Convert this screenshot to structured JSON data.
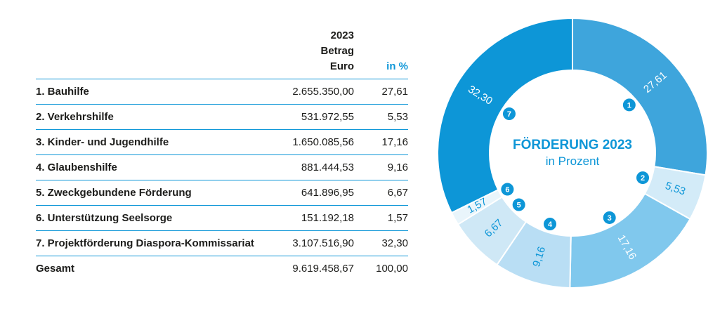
{
  "table": {
    "header_year": "2023",
    "header_betrag": "Betrag",
    "header_euro": "Euro",
    "header_pct": "in %",
    "rows": [
      {
        "label": "1. Bauhilfe",
        "amount": "2.655.350,00",
        "pct": "27,61"
      },
      {
        "label": "2. Verkehrshilfe",
        "amount": "531.972,55",
        "pct": "5,53"
      },
      {
        "label": "3. Kinder- und Jugendhilfe",
        "amount": "1.650.085,56",
        "pct": "17,16"
      },
      {
        "label": "4. Glaubenshilfe",
        "amount": "881.444,53",
        "pct": "9,16"
      },
      {
        "label": "5. Zweckgebundene Förderung",
        "amount": "641.896,95",
        "pct": "6,67"
      },
      {
        "label": "6. Unterstützung Seelsorge",
        "amount": "151.192,18",
        "pct": "1,57"
      },
      {
        "label": "7. Projektförderung Diaspora-Kommissariat",
        "amount": "3.107.516,90",
        "pct": "32,30"
      }
    ],
    "total": {
      "label": "Gesamt",
      "amount": "9.619.458,67",
      "pct": "100,00"
    }
  },
  "chart_data": {
    "type": "pie",
    "title": "FÖRDERUNG 2023",
    "subtitle": "in Prozent",
    "categories": [
      "1",
      "2",
      "3",
      "4",
      "5",
      "6",
      "7"
    ],
    "values": [
      27.61,
      5.53,
      17.16,
      9.16,
      6.67,
      1.57,
      32.3
    ],
    "value_labels": [
      "27,61",
      "5,53",
      "17,16",
      "9,16",
      "6,67",
      "1,57",
      "32,30"
    ],
    "colors": [
      "#3ea5dc",
      "#d3ebf8",
      "#80c8ed",
      "#b9def4",
      "#cfe8f6",
      "#e9f5fb",
      "#0d96d7"
    ],
    "label_colors": [
      "#ffffff",
      "#0d96d7",
      "#ffffff",
      "#0d96d7",
      "#0d96d7",
      "#0d96d7",
      "#ffffff"
    ],
    "marker_color": "#0d96d7"
  }
}
